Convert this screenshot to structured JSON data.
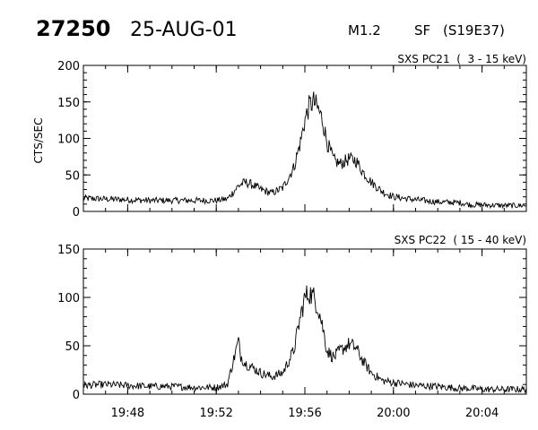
{
  "header": {
    "id": "27250",
    "date": "25-AUG-01",
    "goes_class": "M1.2",
    "optical_class": "SF",
    "location": "(S19E37)"
  },
  "chart_data": [
    {
      "type": "line",
      "title": "SXS PC21  (  3 - 15 keV)",
      "ylabel": "CTS/SEC",
      "xlabel": "",
      "ylim": [
        0,
        200
      ],
      "yticks": [
        0,
        50,
        100,
        150,
        200
      ],
      "xlim": [
        "19:46",
        "20:06"
      ],
      "xticks": [
        "19:48",
        "19:52",
        "19:56",
        "20:00",
        "20:04"
      ],
      "grid": false,
      "series": [
        {
          "x": [
            "19:46",
            "19:47",
            "19:48",
            "19:49",
            "19:50",
            "19:51",
            "19:52",
            "19:52.5",
            "19:53",
            "19:53.3",
            "19:53.6",
            "19:54",
            "19:54.5",
            "19:55",
            "19:55.5",
            "19:55.8",
            "19:56",
            "19:56.2",
            "19:56.4",
            "19:56.6",
            "19:56.8",
            "19:57",
            "19:57.3",
            "19:57.6",
            "19:58",
            "19:58.3",
            "19:58.6",
            "19:59",
            "19:59.5",
            "20:00",
            "20:01",
            "20:02",
            "20:03",
            "20:03.5",
            "20:04",
            "20:05",
            "20:06"
          ],
          "y": [
            18,
            17,
            16,
            15,
            15,
            15,
            15,
            17,
            35,
            40,
            37,
            30,
            25,
            32,
            60,
            95,
            125,
            145,
            150,
            140,
            125,
            95,
            70,
            65,
            72,
            70,
            55,
            40,
            27,
            20,
            16,
            13,
            12,
            9,
            9,
            8,
            8
          ]
        }
      ]
    },
    {
      "type": "line",
      "title": "SXS PC22  ( 15 - 40 keV)",
      "ylabel": "",
      "xlabel": "",
      "ylim": [
        0,
        150
      ],
      "yticks": [
        0,
        50,
        100,
        150
      ],
      "xlim": [
        "19:46",
        "20:06"
      ],
      "xticks": [
        "19:48",
        "19:52",
        "19:56",
        "20:00",
        "20:04"
      ],
      "grid": false,
      "series": [
        {
          "x": [
            "19:46",
            "19:47",
            "19:48",
            "19:49",
            "19:50",
            "19:51",
            "19:52",
            "19:52.5",
            "19:53",
            "19:53.1",
            "19:53.3",
            "19:53.6",
            "19:54",
            "19:54.5",
            "19:55",
            "19:55.5",
            "19:55.8",
            "19:56",
            "19:56.2",
            "19:56.4",
            "19:56.6",
            "19:56.8",
            "19:57",
            "19:57.3",
            "19:57.6",
            "19:58",
            "19:58.3",
            "19:58.6",
            "19:59",
            "19:59.5",
            "20:00",
            "20:01",
            "20:02",
            "20:03",
            "20:03.5",
            "20:04",
            "20:05",
            "20:06"
          ],
          "y": [
            9,
            10,
            9,
            8,
            8,
            7,
            7,
            10,
            55,
            40,
            32,
            28,
            22,
            18,
            22,
            45,
            80,
            100,
            105,
            100,
            90,
            70,
            45,
            38,
            45,
            52,
            48,
            35,
            22,
            14,
            12,
            9,
            8,
            6,
            6,
            5,
            5,
            5
          ]
        }
      ]
    }
  ]
}
